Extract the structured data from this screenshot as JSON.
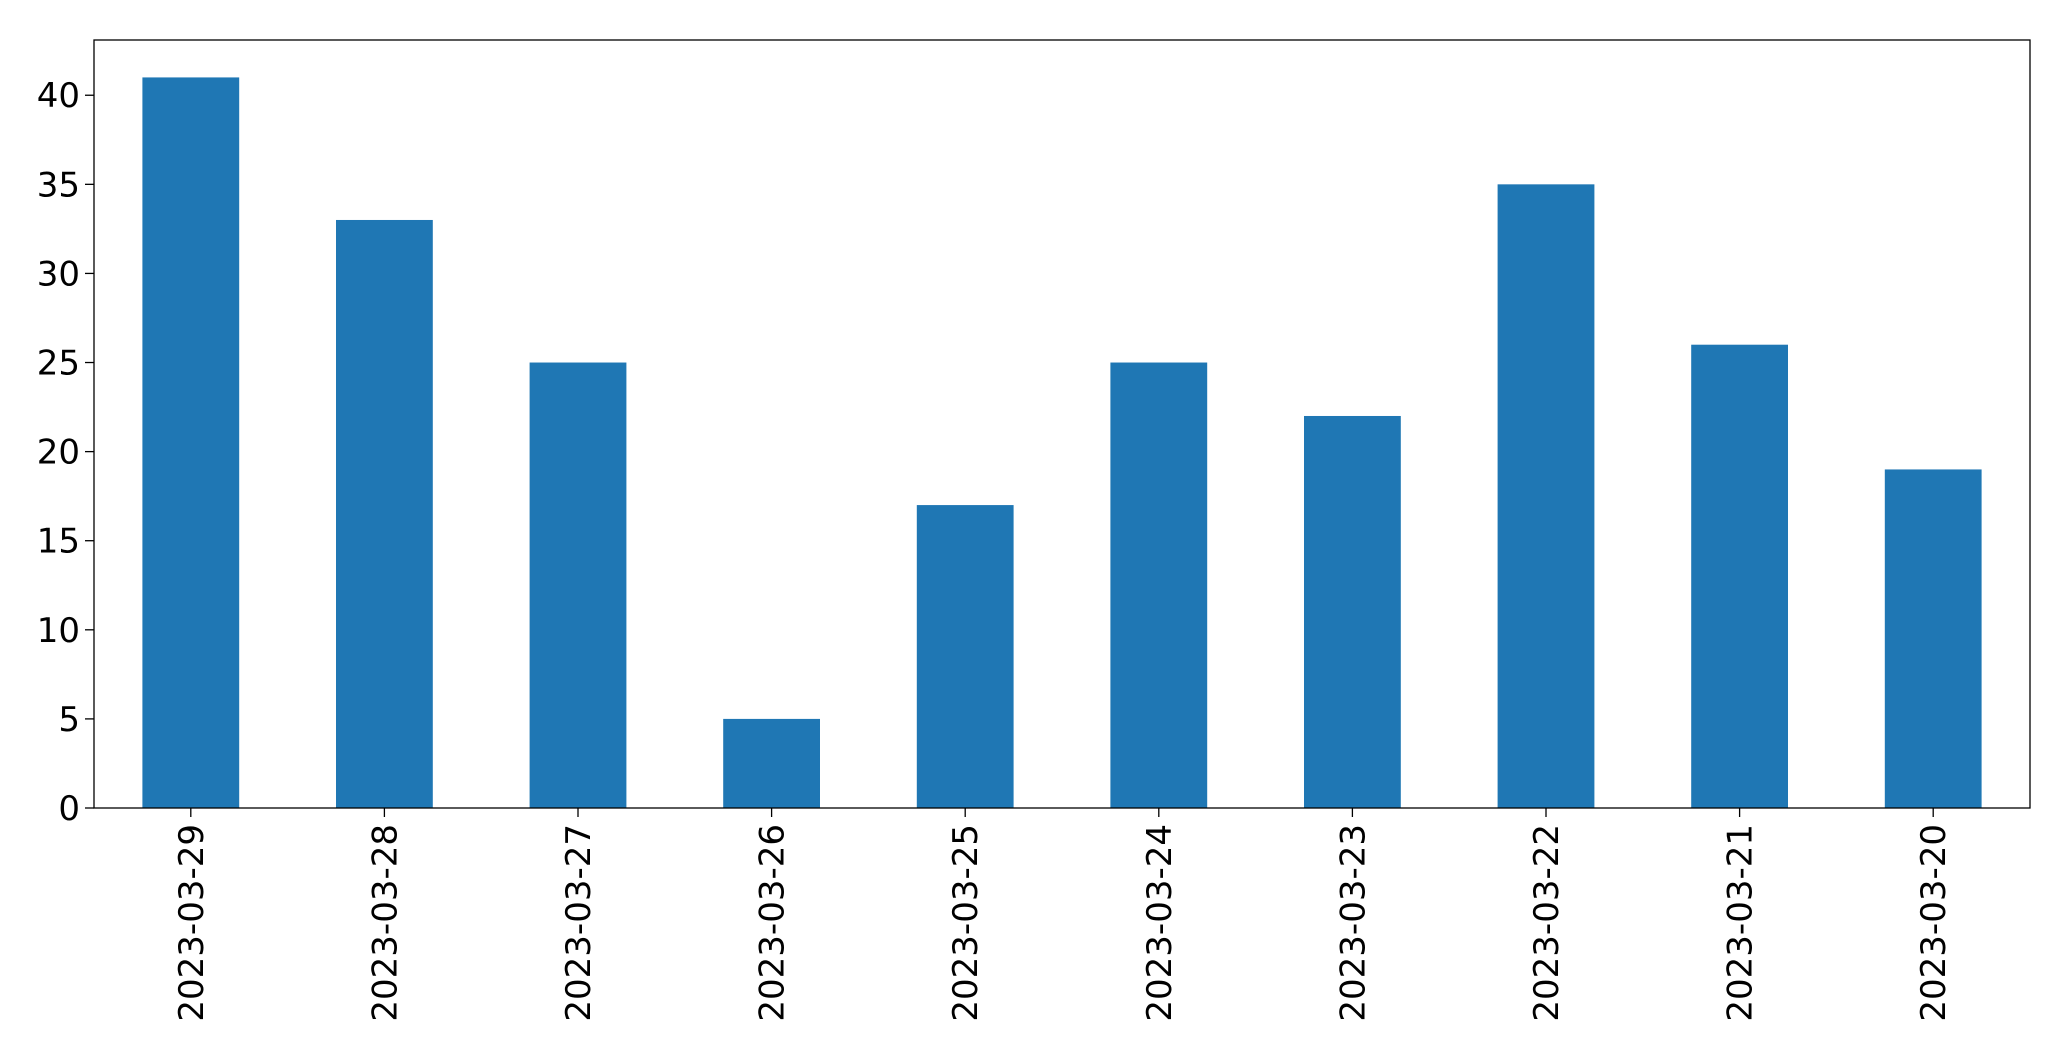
{
  "chart_data": {
    "type": "bar",
    "categories": [
      "2023-03-29",
      "2023-03-28",
      "2023-03-27",
      "2023-03-26",
      "2023-03-25",
      "2023-03-24",
      "2023-03-23",
      "2023-03-22",
      "2023-03-21",
      "2023-03-20"
    ],
    "values": [
      41,
      33,
      25,
      5,
      17,
      25,
      22,
      35,
      26,
      19
    ],
    "color": "#1f77b4",
    "ylim": [
      0,
      43.1
    ],
    "yticks": [
      0,
      5,
      10,
      15,
      20,
      25,
      30,
      35,
      40
    ],
    "grid": false
  }
}
